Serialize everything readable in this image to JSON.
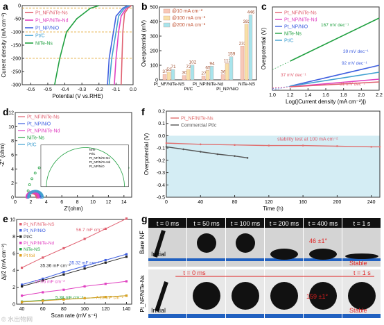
{
  "chart_data": [
    {
      "panel": "a",
      "type": "line",
      "xlabel": "Potential (V vs.RHE)",
      "ylabel": "Current density (mA cm⁻²)",
      "xlim": [
        -0.65,
        0.0
      ],
      "ylim": [
        -300,
        0
      ],
      "xticks": [
        "-0.6",
        "-0.5",
        "-0.4",
        "-0.3",
        "-0.2",
        "-0.1",
        "0.0"
      ],
      "yticks": [
        "0",
        "-50",
        "-100",
        "-150",
        "-200",
        "-250",
        "-300"
      ],
      "reference_lines": [
        -10,
        -100,
        -200
      ],
      "legend": [
        {
          "label": "Pt_NF/NiTe-Ns",
          "color": "#e06070"
        },
        {
          "label": "Pt_NP/NiTe-Nd",
          "color": "#e040c0"
        },
        {
          "label": "Pt_NP/NiO",
          "color": "#4060e0"
        },
        {
          "label": "Pt/C",
          "color": "#40a0d0"
        },
        {
          "label": "NiTe-Ns",
          "color": "#20a040"
        }
      ],
      "series": [
        {
          "name": "Pt_NF/NiTe-Ns",
          "color": "#e06070",
          "points": [
            [
              -0.01,
              0
            ],
            [
              -0.03,
              -10
            ],
            [
              -0.05,
              -30
            ],
            [
              -0.06,
              -100
            ],
            [
              -0.065,
              -200
            ],
            [
              -0.07,
              -300
            ]
          ]
        },
        {
          "name": "Pt_NP/NiTe-Nd",
          "color": "#e040c0",
          "points": [
            [
              -0.02,
              0
            ],
            [
              -0.04,
              -10
            ],
            [
              -0.07,
              -40
            ],
            [
              -0.085,
              -100
            ],
            [
              -0.1,
              -200
            ],
            [
              -0.11,
              -300
            ]
          ]
        },
        {
          "name": "Pt_NP/NiO",
          "color": "#4060e0",
          "points": [
            [
              -0.03,
              0
            ],
            [
              -0.06,
              -10
            ],
            [
              -0.1,
              -40
            ],
            [
              -0.115,
              -100
            ],
            [
              -0.14,
              -200
            ],
            [
              -0.15,
              -300
            ]
          ]
        },
        {
          "name": "Pt/C",
          "color": "#40a0d0",
          "points": [
            [
              -0.02,
              0
            ],
            [
              -0.05,
              -10
            ],
            [
              -0.085,
              -40
            ],
            [
              -0.1,
              -100
            ],
            [
              -0.125,
              -200
            ],
            [
              -0.14,
              -300
            ]
          ]
        },
        {
          "name": "NiTe-Ns",
          "color": "#20a040",
          "points": [
            [
              -0.2,
              0
            ],
            [
              -0.25,
              -10
            ],
            [
              -0.33,
              -50
            ],
            [
              -0.39,
              -100
            ],
            [
              -0.43,
              -200
            ],
            [
              -0.46,
              -300
            ]
          ]
        }
      ]
    },
    {
      "panel": "b",
      "type": "bar",
      "ylabel": "Overpotential (mV)",
      "ylim": [
        0,
        500
      ],
      "yticks": [
        "0",
        "100",
        "200",
        "300",
        "400",
        "500"
      ],
      "categories": [
        "Pt_NF/NiTe-NS",
        "Pt/C",
        "Pt_NP/NiTe-Nd",
        "Pt_NP/NiO",
        "NiTe-NS"
      ],
      "series": [
        {
          "name": "@10 mA cm⁻²",
          "color": "#f8c8b8",
          "values": [
            37,
            30,
            27,
            36,
            232
          ]
        },
        {
          "name": "@100 mA cm⁻²",
          "color": "#f8e0a8",
          "values": [
            53,
            72,
            65,
            112,
            382
          ]
        },
        {
          "name": "@200 mA cm⁻²",
          "color": "#a8e4ec",
          "values": [
            71,
            102,
            94,
            159,
            446
          ]
        }
      ],
      "value_labels": [
        [
          "37",
          "53",
          "71"
        ],
        [
          "30",
          "72",
          "102"
        ],
        [
          "27",
          "65",
          "94"
        ],
        [
          "36",
          "112",
          "159"
        ],
        [
          "232",
          "382",
          "446"
        ]
      ]
    },
    {
      "panel": "c",
      "type": "line",
      "xlabel": "Log(|Current density (mA cm⁻²)|)",
      "ylabel": "Overpotential (V)",
      "xlim": [
        1.0,
        2.2
      ],
      "xticks": [
        "1.0",
        "1.2",
        "1.4",
        "1.6",
        "1.8",
        "2.0",
        "2.2"
      ],
      "legend": [
        {
          "label": "Pt_NF/NiTe-Ns",
          "color": "#e06070"
        },
        {
          "label": "Pt_NP/NiTe-Nd",
          "color": "#e040c0"
        },
        {
          "label": "Pt_NP/NiO",
          "color": "#4060e0"
        },
        {
          "label": "NiTe-Ns",
          "color": "#20a040"
        },
        {
          "label": "Pt/C",
          "color": "#40a0d0"
        }
      ],
      "annotations": [
        "167 mV dec⁻¹",
        "39 mV dec⁻¹",
        "92 mV dec⁻¹",
        "37 mV dec⁻¹",
        "31 mV dec⁻¹"
      ],
      "series": [
        {
          "name": "NiTe-Ns",
          "color": "#20a040",
          "slope": "167 mV dec⁻¹"
        },
        {
          "name": "Pt_NP/NiO",
          "color": "#4060e0",
          "slope": "39 mV dec⁻¹"
        },
        {
          "name": "Pt/C",
          "color": "#40a0d0",
          "slope": "92 mV dec⁻¹"
        },
        {
          "name": "Pt_NP/NiTe-Nd",
          "color": "#e040c0",
          "slope": "37 mV dec⁻¹"
        },
        {
          "name": "Pt_NF/NiTe-Ns",
          "color": "#e06070",
          "slope": "31 mV dec⁻¹"
        }
      ]
    },
    {
      "panel": "d",
      "type": "scatter",
      "xlabel": "Z'(ohm)",
      "ylabel": "-Z'' (ohm)",
      "xlim": [
        0,
        15
      ],
      "ylim": [
        0,
        12
      ],
      "xticks": [
        "0",
        "2",
        "4",
        "6",
        "8",
        "10",
        "12",
        "14"
      ],
      "yticks": [
        "0",
        "2",
        "4",
        "6",
        "8",
        "10",
        "12"
      ],
      "legend": [
        {
          "label": "Pt_NF/NiTe-Ns",
          "color": "#e06070"
        },
        {
          "label": "Pt_NP/NiO",
          "color": "#4060e0"
        },
        {
          "label": "Pt_NP/NiTe-Nd",
          "color": "#e040c0"
        },
        {
          "label": "NiTe-Ns",
          "color": "#20a040"
        },
        {
          "label": "Pt/C",
          "color": "#40a0d0"
        }
      ],
      "inset_labels": [
        "NiTe",
        "Pt/C",
        "Pt_NF/NiTe-Ns",
        "Pt_NP/NiTe-Nd",
        "Pt_NP/NiO"
      ],
      "series": [
        {
          "name": "NiTe-Ns",
          "color": "#20a040",
          "semicircle": {
            "start": 1.6,
            "end": 16.0
          }
        },
        {
          "name": "Pt_NF/NiTe-Ns",
          "color": "#e06070",
          "semicircle": {
            "start": 1.5,
            "end": 2.8
          }
        },
        {
          "name": "Pt_NP/NiO",
          "color": "#4060e0",
          "semicircle": {
            "start": 1.6,
            "end": 3.3
          }
        },
        {
          "name": "Pt_NP/NiTe-Nd",
          "color": "#e040c0",
          "semicircle": {
            "start": 1.5,
            "end": 3.0
          }
        },
        {
          "name": "Pt/C",
          "color": "#40a0d0",
          "semicircle": {
            "start": 1.7,
            "end": 3.5
          }
        }
      ]
    },
    {
      "panel": "e",
      "type": "scatter",
      "xlabel": "Scan rate (mV s⁻¹)",
      "ylabel": "Δj/2 (mA cm⁻²)",
      "xlim": [
        35,
        145
      ],
      "ylim": [
        0,
        10
      ],
      "xticks": [
        "40",
        "60",
        "80",
        "100",
        "120",
        "140"
      ],
      "yticks": [
        "0",
        "2",
        "4",
        "6",
        "8",
        "10"
      ],
      "x": [
        40,
        60,
        80,
        100,
        120,
        140
      ],
      "legend": [
        {
          "label": "Pt_NF/NiTe-NS",
          "color": "#e06070"
        },
        {
          "label": "Pt_NP/NiO",
          "color": "#4060e0"
        },
        {
          "label": "Pt/C",
          "color": "#222222"
        },
        {
          "label": "Pt_NP/NiTe-Nd",
          "color": "#e040c0"
        },
        {
          "label": "NiTe-NS",
          "color": "#20a040"
        },
        {
          "label": "Pt foil",
          "color": "#e0a020"
        }
      ],
      "series": [
        {
          "name": "Pt_NF/NiTe-NS",
          "color": "#e06070",
          "values": [
            4.3,
            5.5,
            6.6,
            7.7,
            8.9,
            10.1
          ],
          "label": "56.7 mF cm⁻²"
        },
        {
          "name": "Pt_NP/NiO",
          "color": "#4060e0",
          "values": [
            2.3,
            3.0,
            3.8,
            4.5,
            5.2,
            5.9
          ],
          "label": "35.32 mF cm⁻²"
        },
        {
          "name": "Pt/C",
          "color": "#222222",
          "values": [
            2.1,
            2.8,
            3.5,
            4.2,
            4.9,
            5.6
          ],
          "label": "35.36 mF cm⁻²"
        },
        {
          "name": "Pt_NP/NiTe-Nd",
          "color": "#e040c0",
          "values": [
            1.0,
            1.4,
            1.7,
            2.1,
            2.4,
            2.7
          ],
          "label": "17.05 mF cm⁻²"
        },
        {
          "name": "NiTe-NS",
          "color": "#20a040",
          "values": [
            0.3,
            0.45,
            0.6,
            0.7,
            0.85,
            1.0
          ],
          "label": "5.38 mF cm⁻²"
        },
        {
          "name": "Pt foil",
          "color": "#e0a020",
          "values": [
            0.25,
            0.4,
            0.55,
            0.7,
            0.85,
            1.0
          ],
          "label": "7.23 mF cm⁻²"
        }
      ]
    },
    {
      "panel": "f",
      "type": "line",
      "xlabel": "Time (h)",
      "ylabel": "Overpotential (V)",
      "xlim": [
        0,
        250
      ],
      "ylim": [
        -0.5,
        0.2
      ],
      "xticks": [
        "0",
        "40",
        "80",
        "120",
        "160",
        "200",
        "240"
      ],
      "yticks": [
        "0.2",
        "0.1",
        "0.0",
        "-0.1",
        "-0.2",
        "-0.3",
        "-0.4",
        "-0.5"
      ],
      "annotation": "stability test at 100 mA cm⁻²",
      "series": [
        {
          "name": "Pt_NF/NiTe-Ns",
          "color": "#e07070",
          "x": [
            0,
            40,
            80,
            120,
            160,
            200,
            240,
            250
          ],
          "values": [
            -0.06,
            -0.07,
            -0.075,
            -0.08,
            -0.08,
            -0.085,
            -0.09,
            -0.09
          ]
        },
        {
          "name": "Commercial Pt/c",
          "color": "#555555",
          "x": [
            0,
            20,
            40,
            60,
            80,
            95
          ],
          "values": [
            -0.09,
            -0.11,
            -0.13,
            -0.15,
            -0.165,
            -0.18
          ]
        }
      ]
    }
  ],
  "panel_g": {
    "label": "g",
    "times_top": [
      "t = 0 ms",
      "t = 50 ms",
      "t = 100 ms",
      "t = 200 ms",
      "t = 400 ms",
      "t = 1 s"
    ],
    "row1_label": "Bare NF",
    "row2_label": "Pt_NF/NiTe-Ns",
    "row1_initial": "Initial",
    "row1_stable": "Stable",
    "row1_angle": "46 ±1°",
    "row2_time_start": "t = 0 ms",
    "row2_time_end": "t = 1 s",
    "row2_initial": "Initial",
    "row2_stable": "Stable",
    "row2_angle": "159 ±1°",
    "accent_color": "#e02020"
  },
  "panel_labels": [
    "a",
    "b",
    "c",
    "d",
    "e",
    "f",
    "g"
  ],
  "watermark": "© 水出物网"
}
